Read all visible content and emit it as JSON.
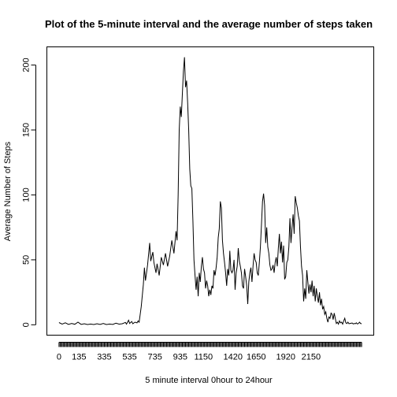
{
  "chart_data": {
    "type": "line",
    "title": "Plot of the 5-minute interval and the average number of steps taken",
    "xlabel": "5 minute interval 0hour to 24hour",
    "ylabel": "Average Number of Steps",
    "x_tick_labels": [
      "0",
      "135",
      "335",
      "535",
      "735",
      "935",
      "1150",
      "1420",
      "1650",
      "1920",
      "2150"
    ],
    "x_tick_label_index": [
      0,
      19,
      43,
      67,
      91,
      115,
      137,
      165,
      187,
      215,
      239
    ],
    "x_tick_count": 288,
    "yticks": [
      0,
      50,
      100,
      150,
      200
    ],
    "ylim": [
      -8,
      214
    ],
    "xlim": [
      -11.5,
      298.5
    ],
    "series": [
      {
        "keypoints": [
          [
            0,
            1.7
          ],
          [
            3,
            0.5
          ],
          [
            6,
            1.5
          ],
          [
            9,
            0.3
          ],
          [
            12,
            1.0
          ],
          [
            15,
            0.4
          ],
          [
            18,
            2.0
          ],
          [
            21,
            0.3
          ],
          [
            24,
            0.8
          ],
          [
            27,
            0.2
          ],
          [
            30,
            0.6
          ],
          [
            33,
            0.2
          ],
          [
            36,
            0.8
          ],
          [
            39,
            0.3
          ],
          [
            42,
            1.0
          ],
          [
            45,
            0.2
          ],
          [
            48,
            0.6
          ],
          [
            51,
            0.3
          ],
          [
            54,
            1.2
          ],
          [
            57,
            0.5
          ],
          [
            60,
            0.8
          ],
          [
            63,
            1.8
          ],
          [
            64,
            0.5
          ],
          [
            66,
            3.5
          ],
          [
            67,
            1.0
          ],
          [
            69,
            2.5
          ],
          [
            70,
            0.8
          ],
          [
            72,
            2.0
          ],
          [
            74,
            1.5
          ],
          [
            75,
            3.0
          ],
          [
            76,
            2.0
          ],
          [
            78,
            14
          ],
          [
            80,
            31
          ],
          [
            81,
            44
          ],
          [
            82,
            34
          ],
          [
            84,
            46
          ],
          [
            86,
            63
          ],
          [
            87,
            49
          ],
          [
            89,
            56
          ],
          [
            90,
            48
          ],
          [
            92,
            40
          ],
          [
            93,
            47
          ],
          [
            95,
            38
          ],
          [
            97,
            52
          ],
          [
            99,
            46
          ],
          [
            101,
            55
          ],
          [
            103,
            45
          ],
          [
            105,
            53
          ],
          [
            107,
            65
          ],
          [
            109,
            55
          ],
          [
            111,
            72
          ],
          [
            112,
            65
          ],
          [
            113,
            100
          ],
          [
            114,
            150
          ],
          [
            115,
            168
          ],
          [
            116,
            160
          ],
          [
            117,
            178
          ],
          [
            118,
            195
          ],
          [
            119,
            206
          ],
          [
            120,
            183
          ],
          [
            121,
            188
          ],
          [
            122,
            171
          ],
          [
            123,
            150
          ],
          [
            124,
            120
          ],
          [
            125,
            107
          ],
          [
            126,
            105
          ],
          [
            127,
            80
          ],
          [
            128,
            50
          ],
          [
            129,
            38
          ],
          [
            130,
            27
          ],
          [
            131,
            37
          ],
          [
            132,
            22
          ],
          [
            133,
            40
          ],
          [
            134,
            33
          ],
          [
            135,
            45
          ],
          [
            136,
            52
          ],
          [
            137,
            43
          ],
          [
            138,
            40
          ],
          [
            139,
            28
          ],
          [
            140,
            34
          ],
          [
            141,
            30
          ],
          [
            142,
            22
          ],
          [
            143,
            27
          ],
          [
            144,
            23
          ],
          [
            145,
            30
          ],
          [
            146,
            28
          ],
          [
            147,
            42
          ],
          [
            148,
            38
          ],
          [
            149,
            44
          ],
          [
            150,
            52
          ],
          [
            151,
            67
          ],
          [
            152,
            74
          ],
          [
            153,
            95
          ],
          [
            154,
            90
          ],
          [
            155,
            65
          ],
          [
            156,
            55
          ],
          [
            157,
            48
          ],
          [
            158,
            40
          ],
          [
            159,
            30
          ],
          [
            160,
            43
          ],
          [
            161,
            38
          ],
          [
            162,
            57
          ],
          [
            163,
            42
          ],
          [
            164,
            40
          ],
          [
            165,
            42
          ],
          [
            166,
            50
          ],
          [
            167,
            27
          ],
          [
            168,
            40
          ],
          [
            169,
            45
          ],
          [
            170,
            59
          ],
          [
            171,
            49
          ],
          [
            172,
            45
          ],
          [
            173,
            40
          ],
          [
            174,
            30
          ],
          [
            175,
            28
          ],
          [
            176,
            43
          ],
          [
            177,
            37
          ],
          [
            178,
            30
          ],
          [
            179,
            16
          ],
          [
            180,
            33
          ],
          [
            181,
            40
          ],
          [
            182,
            44
          ],
          [
            183,
            33
          ],
          [
            184,
            45
          ],
          [
            185,
            55
          ],
          [
            186,
            50
          ],
          [
            187,
            48
          ],
          [
            188,
            40
          ],
          [
            189,
            38
          ],
          [
            190,
            48
          ],
          [
            191,
            60
          ],
          [
            192,
            77
          ],
          [
            193,
            95
          ],
          [
            194,
            101
          ],
          [
            195,
            92
          ],
          [
            196,
            63
          ],
          [
            197,
            75
          ],
          [
            198,
            60
          ],
          [
            199,
            55
          ],
          [
            200,
            46
          ],
          [
            201,
            42
          ],
          [
            202,
            43
          ],
          [
            203,
            46
          ],
          [
            204,
            40
          ],
          [
            205,
            48
          ],
          [
            206,
            52
          ],
          [
            207,
            45
          ],
          [
            208,
            59
          ],
          [
            209,
            70
          ],
          [
            210,
            55
          ],
          [
            211,
            64
          ],
          [
            212,
            48
          ],
          [
            213,
            61
          ],
          [
            214,
            35
          ],
          [
            215,
            37
          ],
          [
            216,
            48
          ],
          [
            217,
            50
          ],
          [
            218,
            60
          ],
          [
            219,
            82
          ],
          [
            220,
            63
          ],
          [
            221,
            75
          ],
          [
            222,
            85
          ],
          [
            223,
            70
          ],
          [
            224,
            99
          ],
          [
            225,
            94
          ],
          [
            226,
            90
          ],
          [
            227,
            84
          ],
          [
            228,
            80
          ],
          [
            229,
            60
          ],
          [
            230,
            45
          ],
          [
            231,
            38
          ],
          [
            232,
            18
          ],
          [
            233,
            28
          ],
          [
            234,
            20
          ],
          [
            235,
            42
          ],
          [
            236,
            33
          ],
          [
            237,
            24
          ],
          [
            238,
            31
          ],
          [
            239,
            25
          ],
          [
            240,
            34
          ],
          [
            241,
            22
          ],
          [
            242,
            30
          ],
          [
            243,
            18
          ],
          [
            244,
            28
          ],
          [
            245,
            22
          ],
          [
            246,
            17
          ],
          [
            247,
            25
          ],
          [
            248,
            15
          ],
          [
            249,
            20
          ],
          [
            250,
            12
          ],
          [
            251,
            14
          ],
          [
            252,
            8
          ],
          [
            253,
            10
          ],
          [
            254,
            5
          ],
          [
            255,
            2
          ],
          [
            256,
            6
          ],
          [
            257,
            5
          ],
          [
            258,
            9
          ],
          [
            259,
            8
          ],
          [
            260,
            4
          ],
          [
            261,
            9
          ],
          [
            262,
            5
          ],
          [
            263,
            1
          ],
          [
            264,
            2
          ],
          [
            265,
            0.5
          ],
          [
            266,
            3
          ],
          [
            267,
            1.5
          ],
          [
            268,
            2
          ],
          [
            269,
            0.5
          ],
          [
            270,
            3
          ],
          [
            271,
            5
          ],
          [
            272,
            1.5
          ],
          [
            273,
            1
          ],
          [
            274,
            2
          ],
          [
            275,
            0.8
          ],
          [
            276,
            1.0
          ],
          [
            277,
            1.2
          ],
          [
            278,
            1.4
          ],
          [
            279,
            0.6
          ],
          [
            280,
            1.0
          ],
          [
            281,
            0.8
          ],
          [
            282,
            1.5
          ],
          [
            283,
            0.6
          ],
          [
            284,
            1.0
          ],
          [
            285,
            2.0
          ],
          [
            286,
            1.0
          ],
          [
            287,
            0.8
          ]
        ]
      }
    ]
  }
}
